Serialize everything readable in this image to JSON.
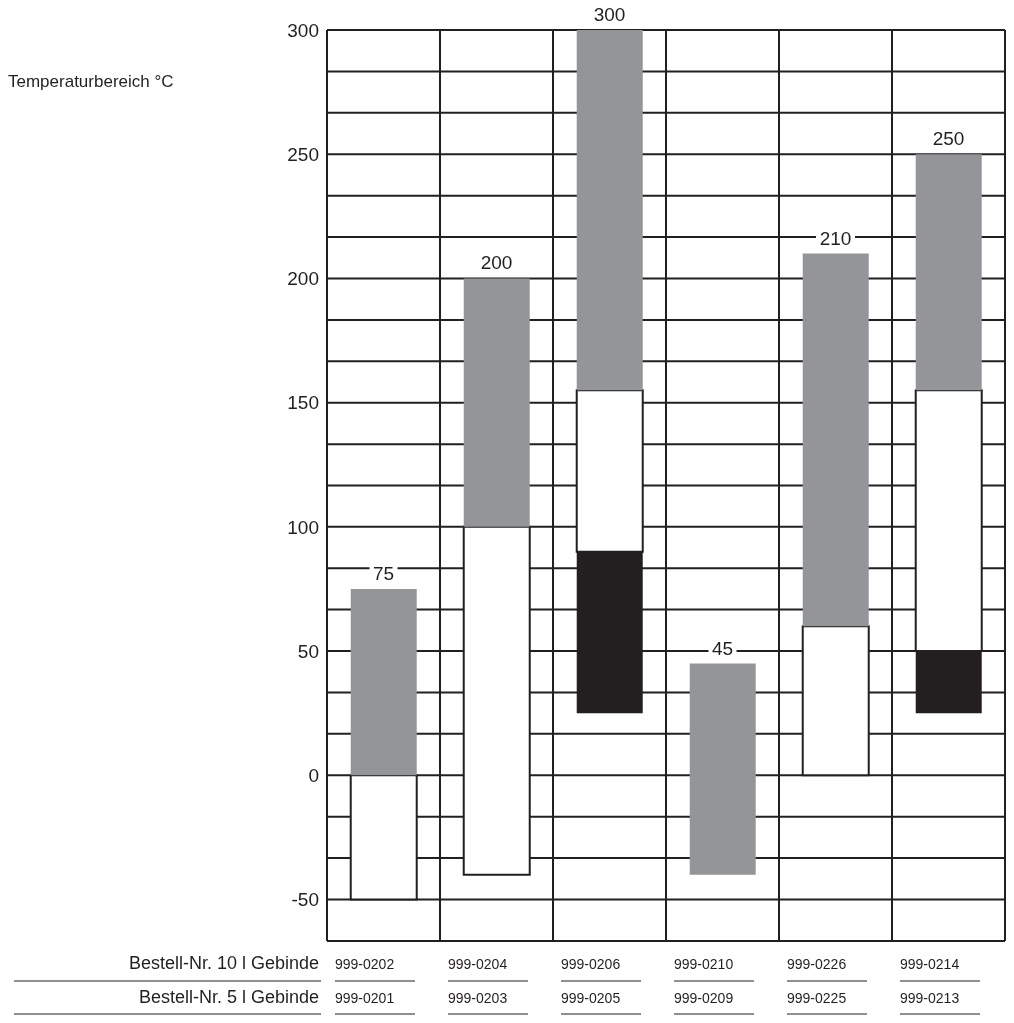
{
  "chart_data": {
    "type": "bar",
    "categories": [
      "999-0202",
      "999-0204",
      "999-0206",
      "999-0210",
      "999-0226",
      "999-0214"
    ],
    "series": [
      {
        "color": "#231f20",
        "base": [
          null,
          null,
          25,
          null,
          null,
          25
        ],
        "values": [
          null,
          null,
          65,
          null,
          null,
          25
        ]
      },
      {
        "color": "#ffffff",
        "base": [
          -50,
          -40,
          90,
          null,
          0,
          50
        ],
        "values": [
          50,
          140,
          65,
          null,
          60,
          105
        ]
      },
      {
        "color": "#939598",
        "base": [
          0,
          100,
          155,
          -40,
          60,
          155
        ],
        "values": [
          75,
          100,
          145,
          85,
          150,
          95
        ]
      }
    ],
    "ylim": [
      -66.7,
      300
    ],
    "yticks": [
      -50,
      {
        "value": -33.3,
        "label": null
      },
      {
        "value": -16.7,
        "label": null
      },
      0,
      {
        "value": 16.7,
        "label": null
      },
      {
        "value": 33.3,
        "label": null
      },
      50,
      {
        "value": 66.7,
        "label": null
      },
      {
        "value": 83.3,
        "label": null
      },
      100,
      {
        "value": 116.7,
        "label": null
      },
      {
        "value": 133.3,
        "label": null
      },
      150,
      {
        "value": 166.7,
        "label": null
      },
      {
        "value": 183.3,
        "label": null
      },
      200,
      {
        "value": 216.7,
        "label": null
      },
      {
        "value": 233.3,
        "label": null
      },
      250,
      {
        "value": 266.7,
        "label": null
      },
      {
        "value": 283.3,
        "label": null
      },
      300
    ],
    "grid": true,
    "annotations": [
      "Temperaturbereich °C",
      "Bestell-Nr. 10 l Gebinde",
      "Bestell-Nr. 5 l Gebinde",
      "999-0201",
      "999-0203",
      "999-0205",
      "999-0209",
      "999-0225",
      "999-0213",
      {
        "text": "75",
        "x": "999-0202",
        "y": 75
      },
      {
        "text": "200",
        "x": "999-0204",
        "y": 200
      },
      {
        "text": "300",
        "x": "999-0206",
        "y": 300
      },
      {
        "text": "45",
        "x": "999-0210",
        "y": 45
      },
      {
        "text": "210",
        "x": "999-0226",
        "y": 210
      },
      {
        "text": "250",
        "x": "999-0214",
        "y": 250
      }
    ]
  }
}
